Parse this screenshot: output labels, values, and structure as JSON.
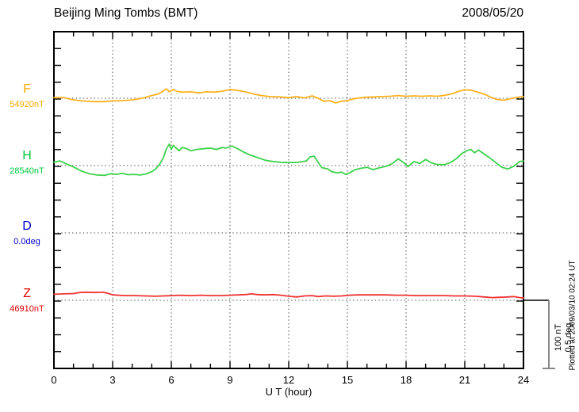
{
  "header": {
    "title": "Beijing Ming Tombs (BMT)",
    "date": "2008/05/20"
  },
  "chart_data": {
    "type": "line",
    "title": "Beijing Ming Tombs (BMT)",
    "date": "2008/05/20",
    "xlabel": "U T (hour)",
    "x_range": [
      0,
      24
    ],
    "x_major_ticks": [
      "0",
      "3",
      "6",
      "9",
      "12",
      "15",
      "18",
      "21",
      "24"
    ],
    "x_minor_step_hours": 1,
    "grid_hours": [
      3,
      6,
      9,
      12,
      15,
      18,
      21
    ],
    "y_minor_div_nT": 25,
    "grid": "dotted",
    "scale_bar": {
      "nt": "100 nT",
      "deg": "0.5 deg",
      "span_nT": 100
    },
    "plotted_at": "Plotted at 2009/03/10 02:24 UT",
    "axis_color": "#000000",
    "grid_color": "#4a4a4a",
    "scalebar_color": "#878787",
    "series": [
      {
        "id": "F",
        "label": "F",
        "base_value": "54920nT",
        "unit": "nT",
        "color": "#f5a800",
        "trace_color": "#ffb21e",
        "points": [
          [
            0,
            1
          ],
          [
            0.5,
            1
          ],
          [
            1,
            -2.5
          ],
          [
            1.5,
            -4
          ],
          [
            2,
            -5
          ],
          [
            2.5,
            -5
          ],
          [
            3,
            -4
          ],
          [
            3.5,
            -3.5
          ],
          [
            4,
            -2.5
          ],
          [
            4.5,
            0
          ],
          [
            5,
            4
          ],
          [
            5.3,
            6
          ],
          [
            5.55,
            10
          ],
          [
            5.75,
            14
          ],
          [
            5.9,
            9.5
          ],
          [
            6.1,
            13
          ],
          [
            6.3,
            10
          ],
          [
            6.6,
            9
          ],
          [
            7,
            9.5
          ],
          [
            7.4,
            8
          ],
          [
            7.8,
            9.5
          ],
          [
            8.2,
            9
          ],
          [
            8.6,
            10.5
          ],
          [
            9,
            13
          ],
          [
            9.3,
            12
          ],
          [
            9.7,
            10
          ],
          [
            10,
            8
          ],
          [
            10.5,
            4.5
          ],
          [
            11,
            2.5
          ],
          [
            11.5,
            2
          ],
          [
            12,
            1
          ],
          [
            12.4,
            2.5
          ],
          [
            12.8,
            0.5
          ],
          [
            13.2,
            3.5
          ],
          [
            13.5,
            0
          ],
          [
            13.8,
            -4.5
          ],
          [
            14.1,
            -3.5
          ],
          [
            14.4,
            -7
          ],
          [
            14.7,
            -4.5
          ],
          [
            15,
            -3.5
          ],
          [
            15.3,
            -1
          ],
          [
            15.6,
            0.5
          ],
          [
            16,
            1.5
          ],
          [
            16.4,
            2
          ],
          [
            16.8,
            2.5
          ],
          [
            17.2,
            3
          ],
          [
            17.6,
            4
          ],
          [
            18,
            3
          ],
          [
            18.4,
            3.5
          ],
          [
            18.8,
            3
          ],
          [
            19.2,
            3.5
          ],
          [
            19.6,
            3
          ],
          [
            20,
            4.5
          ],
          [
            20.4,
            7
          ],
          [
            20.7,
            10.5
          ],
          [
            21,
            12.5
          ],
          [
            21.3,
            12
          ],
          [
            21.6,
            9.5
          ],
          [
            22,
            6
          ],
          [
            22.3,
            2
          ],
          [
            22.6,
            -1.5
          ],
          [
            23,
            -3
          ],
          [
            23.3,
            -1
          ],
          [
            23.6,
            1
          ],
          [
            24,
            2.5
          ]
        ]
      },
      {
        "id": "H",
        "label": "H",
        "base_value": "28540nT",
        "unit": "nT",
        "color": "#00c83c",
        "trace_color": "#3cd24b",
        "points": [
          [
            0,
            5
          ],
          [
            0.3,
            7
          ],
          [
            0.6,
            3
          ],
          [
            1,
            -2
          ],
          [
            1.4,
            -8
          ],
          [
            1.8,
            -12
          ],
          [
            2.2,
            -14
          ],
          [
            2.6,
            -14.5
          ],
          [
            2.9,
            -12
          ],
          [
            3.2,
            -13
          ],
          [
            3.5,
            -11.5
          ],
          [
            3.8,
            -13.5
          ],
          [
            4.1,
            -13
          ],
          [
            4.4,
            -14
          ],
          [
            4.7,
            -12.5
          ],
          [
            5,
            -9
          ],
          [
            5.2,
            -5
          ],
          [
            5.4,
            2
          ],
          [
            5.6,
            12
          ],
          [
            5.75,
            25
          ],
          [
            5.9,
            32
          ],
          [
            6,
            24
          ],
          [
            6.1,
            30
          ],
          [
            6.25,
            26
          ],
          [
            6.4,
            22
          ],
          [
            6.55,
            27
          ],
          [
            6.7,
            26
          ],
          [
            7,
            22
          ],
          [
            7.3,
            24
          ],
          [
            7.6,
            25
          ],
          [
            8,
            26
          ],
          [
            8.3,
            24
          ],
          [
            8.6,
            27
          ],
          [
            8.8,
            26
          ],
          [
            9.1,
            29
          ],
          [
            9.4,
            25
          ],
          [
            9.7,
            20
          ],
          [
            10,
            16
          ],
          [
            10.4,
            12
          ],
          [
            10.8,
            8
          ],
          [
            11.2,
            6
          ],
          [
            11.6,
            5
          ],
          [
            12,
            4.5
          ],
          [
            12.5,
            5
          ],
          [
            12.9,
            7
          ],
          [
            13.1,
            13
          ],
          [
            13.3,
            14
          ],
          [
            13.5,
            5
          ],
          [
            13.7,
            -3
          ],
          [
            14,
            -5
          ],
          [
            14.2,
            -9
          ],
          [
            14.5,
            -11
          ],
          [
            14.7,
            -9.5
          ],
          [
            14.9,
            -13
          ],
          [
            15.1,
            -11
          ],
          [
            15.4,
            -6
          ],
          [
            15.7,
            -4
          ],
          [
            16,
            -2.5
          ],
          [
            16.3,
            -6
          ],
          [
            16.6,
            -3.5
          ],
          [
            17,
            -1
          ],
          [
            17.3,
            3
          ],
          [
            17.6,
            10
          ],
          [
            17.9,
            4
          ],
          [
            18.1,
            -1.5
          ],
          [
            18.4,
            6
          ],
          [
            18.7,
            3
          ],
          [
            19,
            9
          ],
          [
            19.3,
            4
          ],
          [
            19.6,
            1.5
          ],
          [
            20,
            1.5
          ],
          [
            20.3,
            5
          ],
          [
            20.6,
            11
          ],
          [
            20.9,
            19
          ],
          [
            21.1,
            22
          ],
          [
            21.3,
            24
          ],
          [
            21.5,
            19
          ],
          [
            21.7,
            23
          ],
          [
            22,
            17
          ],
          [
            22.3,
            11
          ],
          [
            22.6,
            4
          ],
          [
            22.9,
            -2.5
          ],
          [
            23.2,
            -5
          ],
          [
            23.5,
            -1
          ],
          [
            23.8,
            6
          ],
          [
            24,
            7
          ]
        ]
      },
      {
        "id": "D",
        "label": "D",
        "base_value": "0.0deg",
        "unit": "deg",
        "color": "#0000cd",
        "trace_color": "#0000cd",
        "points": []
      },
      {
        "id": "Z",
        "label": "Z",
        "base_value": "46910nT",
        "unit": "nT",
        "color": "#e00000",
        "trace_color": "#f03232",
        "points": [
          [
            0,
            9
          ],
          [
            0.5,
            9.5
          ],
          [
            1,
            10
          ],
          [
            1.3,
            11.5
          ],
          [
            1.7,
            12
          ],
          [
            2.1,
            11.5
          ],
          [
            2.5,
            12
          ],
          [
            2.8,
            10
          ],
          [
            3,
            8
          ],
          [
            3.3,
            7.5
          ],
          [
            3.7,
            7
          ],
          [
            4.2,
            7
          ],
          [
            4.7,
            6.5
          ],
          [
            5.2,
            6
          ],
          [
            5.6,
            6.5
          ],
          [
            6,
            7
          ],
          [
            6.5,
            7.5
          ],
          [
            7,
            7
          ],
          [
            7.5,
            7.5
          ],
          [
            8,
            7
          ],
          [
            8.5,
            7
          ],
          [
            9,
            7.5
          ],
          [
            9.4,
            8
          ],
          [
            9.8,
            8.5
          ],
          [
            10.1,
            9.5
          ],
          [
            10.4,
            8.5
          ],
          [
            10.8,
            8
          ],
          [
            11.2,
            8.5
          ],
          [
            11.6,
            7.5
          ],
          [
            12,
            6
          ],
          [
            12.4,
            5
          ],
          [
            12.8,
            6.5
          ],
          [
            13.2,
            7
          ],
          [
            13.5,
            5.5
          ],
          [
            13.9,
            6.5
          ],
          [
            14.3,
            6
          ],
          [
            14.7,
            6.5
          ],
          [
            15.1,
            7.5
          ],
          [
            15.5,
            8
          ],
          [
            16,
            8
          ],
          [
            16.5,
            8
          ],
          [
            17,
            8
          ],
          [
            17.5,
            7.5
          ],
          [
            18,
            7.5
          ],
          [
            18.5,
            7
          ],
          [
            19,
            7
          ],
          [
            19.5,
            7
          ],
          [
            20,
            7
          ],
          [
            20.5,
            6.5
          ],
          [
            21,
            6.5
          ],
          [
            21.5,
            6
          ],
          [
            22,
            5
          ],
          [
            22.4,
            4
          ],
          [
            22.8,
            4.5
          ],
          [
            23.2,
            5
          ],
          [
            23.5,
            5.5
          ],
          [
            23.8,
            4
          ],
          [
            24,
            3.5
          ]
        ]
      }
    ]
  }
}
